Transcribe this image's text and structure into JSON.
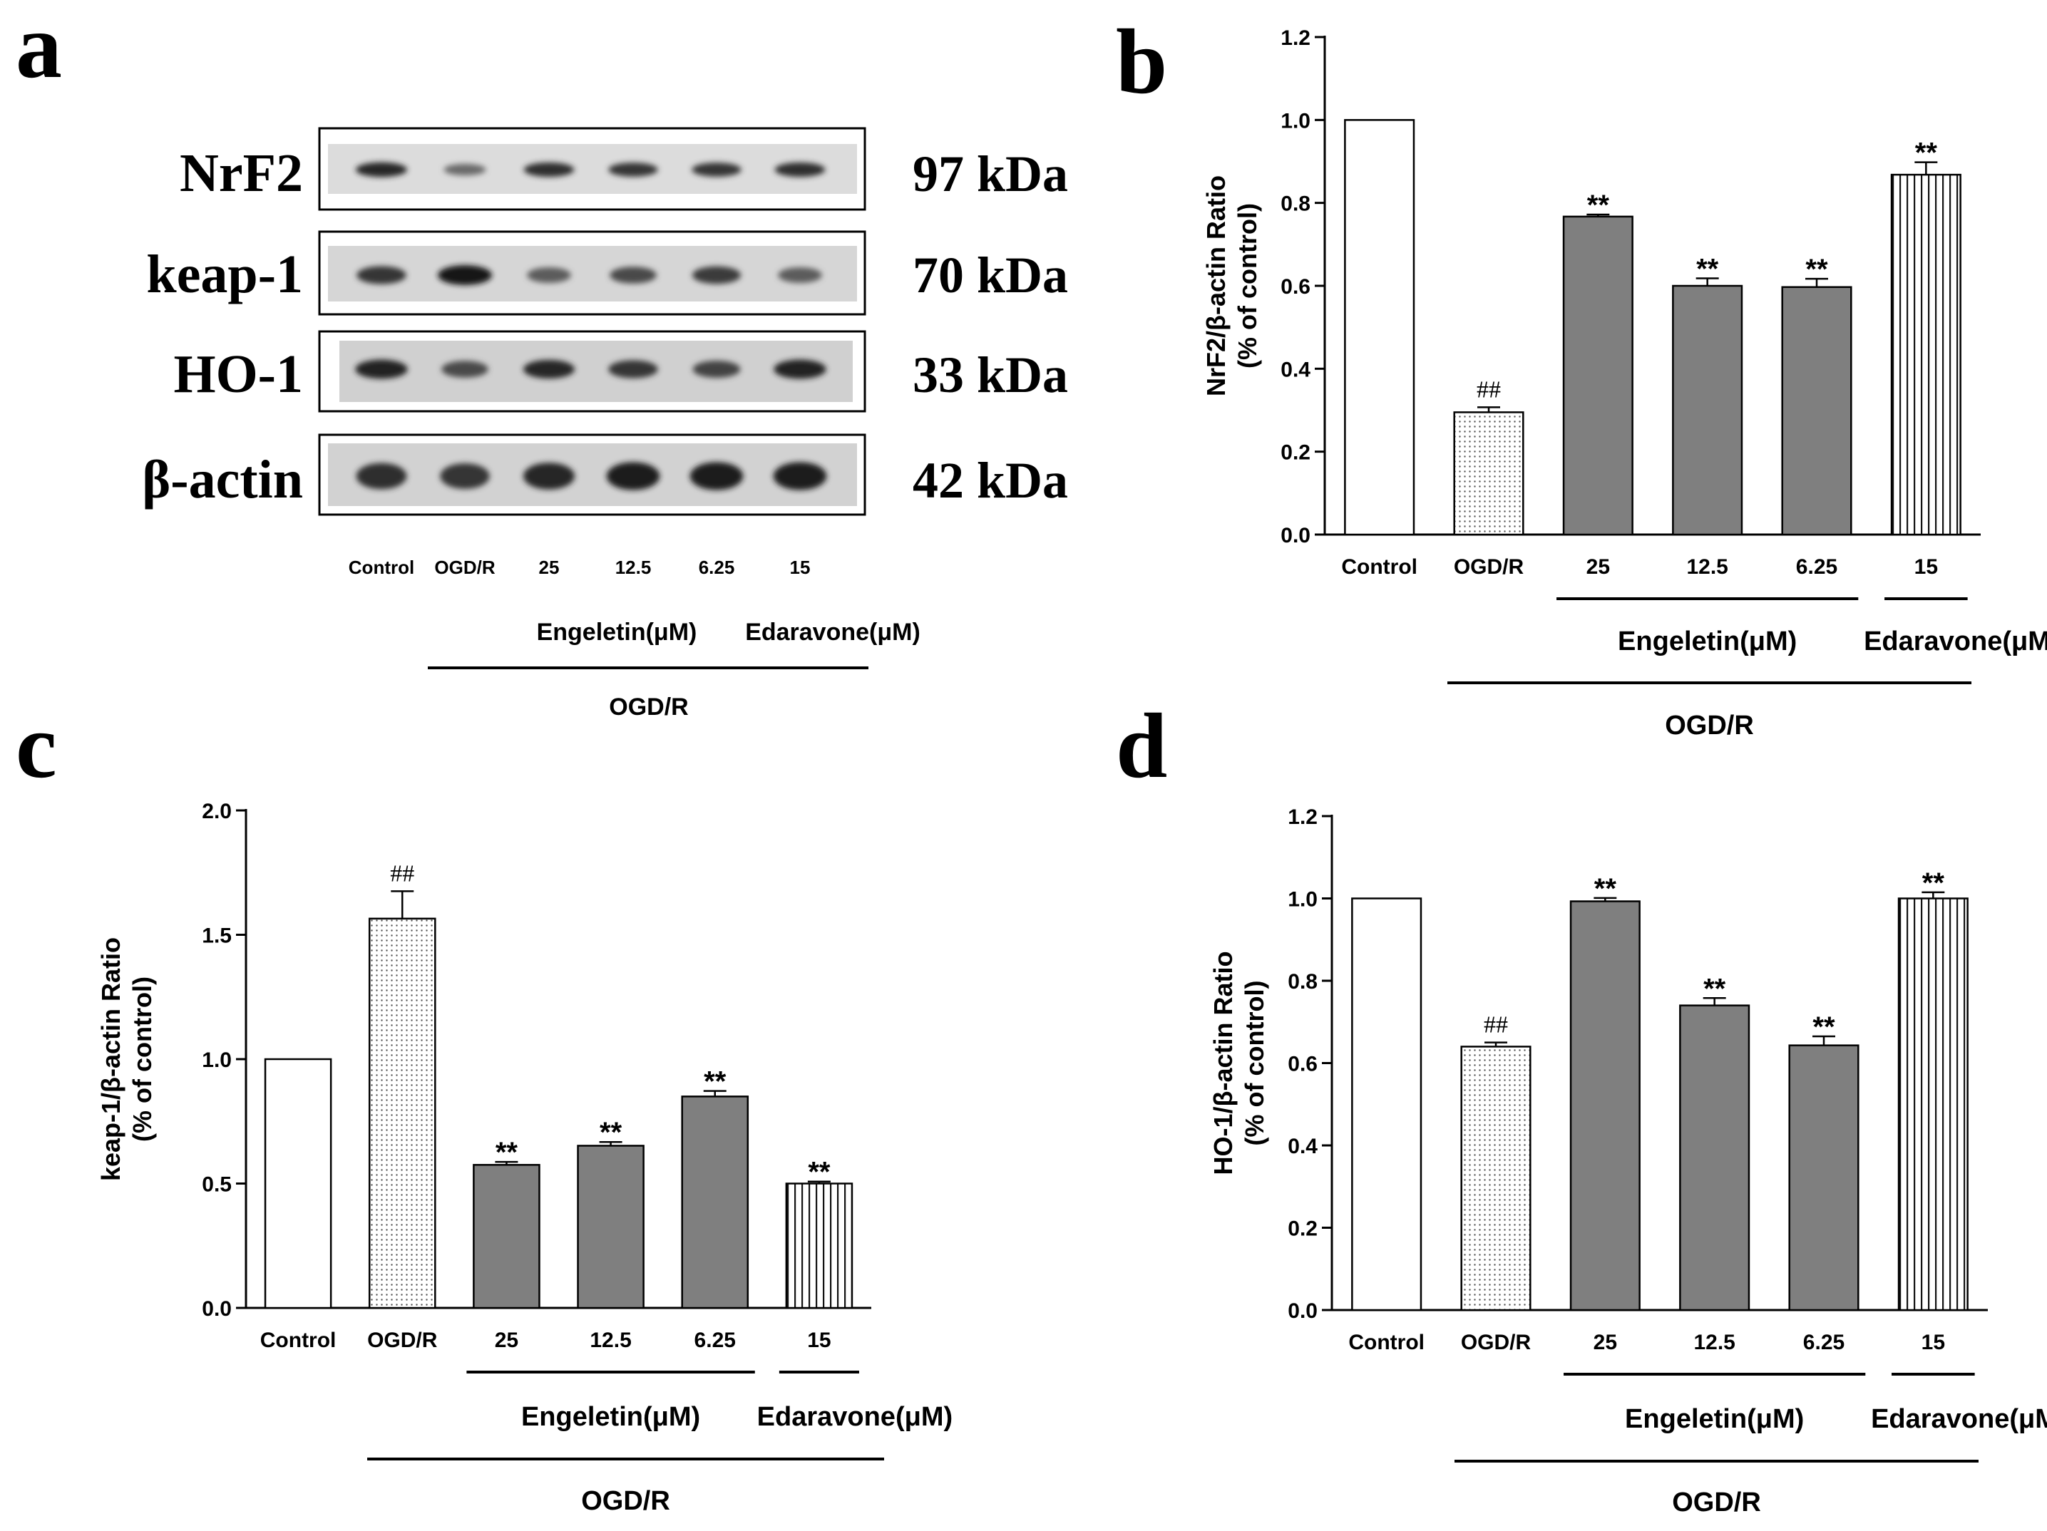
{
  "figure": {
    "panel_letters": [
      "a",
      "b",
      "c",
      "d"
    ]
  },
  "western_blot": {
    "rows": [
      {
        "name": "NrF2",
        "kda": "97 kDa",
        "intensity": [
          0.85,
          0.35,
          0.8,
          0.75,
          0.75,
          0.8
        ]
      },
      {
        "name": "keap-1",
        "kda": "70 kDa",
        "intensity": [
          0.75,
          1.0,
          0.45,
          0.6,
          0.7,
          0.45
        ]
      },
      {
        "name": "HO-1",
        "kda": "33 kDa",
        "intensity": [
          0.9,
          0.6,
          0.85,
          0.75,
          0.65,
          0.9
        ]
      },
      {
        "name": "β-actin",
        "kda": "42 kDa",
        "intensity": [
          0.8,
          0.75,
          0.85,
          0.95,
          0.95,
          0.95
        ]
      }
    ],
    "lanes": [
      "Control",
      "OGD/R",
      "25",
      "12.5",
      "6.25",
      "15"
    ],
    "groups": {
      "engeletin": "Engeletin(μM)",
      "edaravone": "Edaravone(μM)",
      "ogdr": "OGD/R"
    }
  },
  "chart_data": [
    {
      "type": "bar",
      "panel": "b",
      "title": "",
      "xlabel": "",
      "ylabel": "NrF2/β-actin Ratio",
      "ylabel2": "(% of control)",
      "categories": [
        "Control",
        "OGD/R",
        "25",
        "12.5",
        "6.25",
        "15"
      ],
      "values": [
        1.0,
        0.295,
        0.767,
        0.6,
        0.597,
        0.868
      ],
      "errors": [
        0,
        0.012,
        0.005,
        0.018,
        0.02,
        0.03
      ],
      "annotations": [
        "",
        "##",
        "**",
        "**",
        "**",
        "**"
      ],
      "ylim": [
        0,
        1.2
      ],
      "yticks": [
        "0.0",
        "0.2",
        "0.4",
        "0.6",
        "0.8",
        "1.0",
        "1.2"
      ],
      "groups": {
        "engeletin": "Engeletin(μM)",
        "edaravone": "Edaravone(μM)",
        "ogdr": "OGD/R"
      },
      "patterns": [
        "white",
        "dots",
        "gray",
        "gray",
        "gray",
        "vlines"
      ]
    },
    {
      "type": "bar",
      "panel": "c",
      "title": "",
      "xlabel": "",
      "ylabel": "keap-1/β-actin Ratio",
      "ylabel2": "(% of control)",
      "categories": [
        "Control",
        "OGD/R",
        "25",
        "12.5",
        "6.25",
        "15"
      ],
      "values": [
        1.0,
        1.565,
        0.575,
        0.652,
        0.85,
        0.5
      ],
      "errors": [
        0,
        0.11,
        0.012,
        0.015,
        0.022,
        0.008
      ],
      "annotations": [
        "",
        "##",
        "**",
        "**",
        "**",
        "**"
      ],
      "ylim": [
        0,
        2.0
      ],
      "yticks": [
        "0.0",
        "0.5",
        "1.0",
        "1.5",
        "2.0"
      ],
      "groups": {
        "engeletin": "Engeletin(μM)",
        "edaravone": "Edaravone(μM)",
        "ogdr": "OGD/R"
      },
      "patterns": [
        "white",
        "dots",
        "gray",
        "gray",
        "gray",
        "vlines"
      ]
    },
    {
      "type": "bar",
      "panel": "d",
      "title": "",
      "xlabel": "",
      "ylabel": "HO-1/β-actin Ratio",
      "ylabel2": "(% of control)",
      "categories": [
        "Control",
        "OGD/R",
        "25",
        "12.5",
        "6.25",
        "15"
      ],
      "values": [
        1.0,
        0.64,
        0.993,
        0.74,
        0.643,
        1.0
      ],
      "errors": [
        0,
        0.01,
        0.008,
        0.018,
        0.022,
        0.015
      ],
      "annotations": [
        "",
        "##",
        "**",
        "**",
        "**",
        "**"
      ],
      "ylim": [
        0,
        1.2
      ],
      "yticks": [
        "0.0",
        "0.2",
        "0.4",
        "0.6",
        "0.8",
        "1.0",
        "1.2"
      ],
      "groups": {
        "engeletin": "Engeletin(μM)",
        "edaravone": "Edaravone(μM)",
        "ogdr": "OGD/R"
      },
      "patterns": [
        "white",
        "dots",
        "gray",
        "gray",
        "gray",
        "vlines"
      ]
    }
  ]
}
